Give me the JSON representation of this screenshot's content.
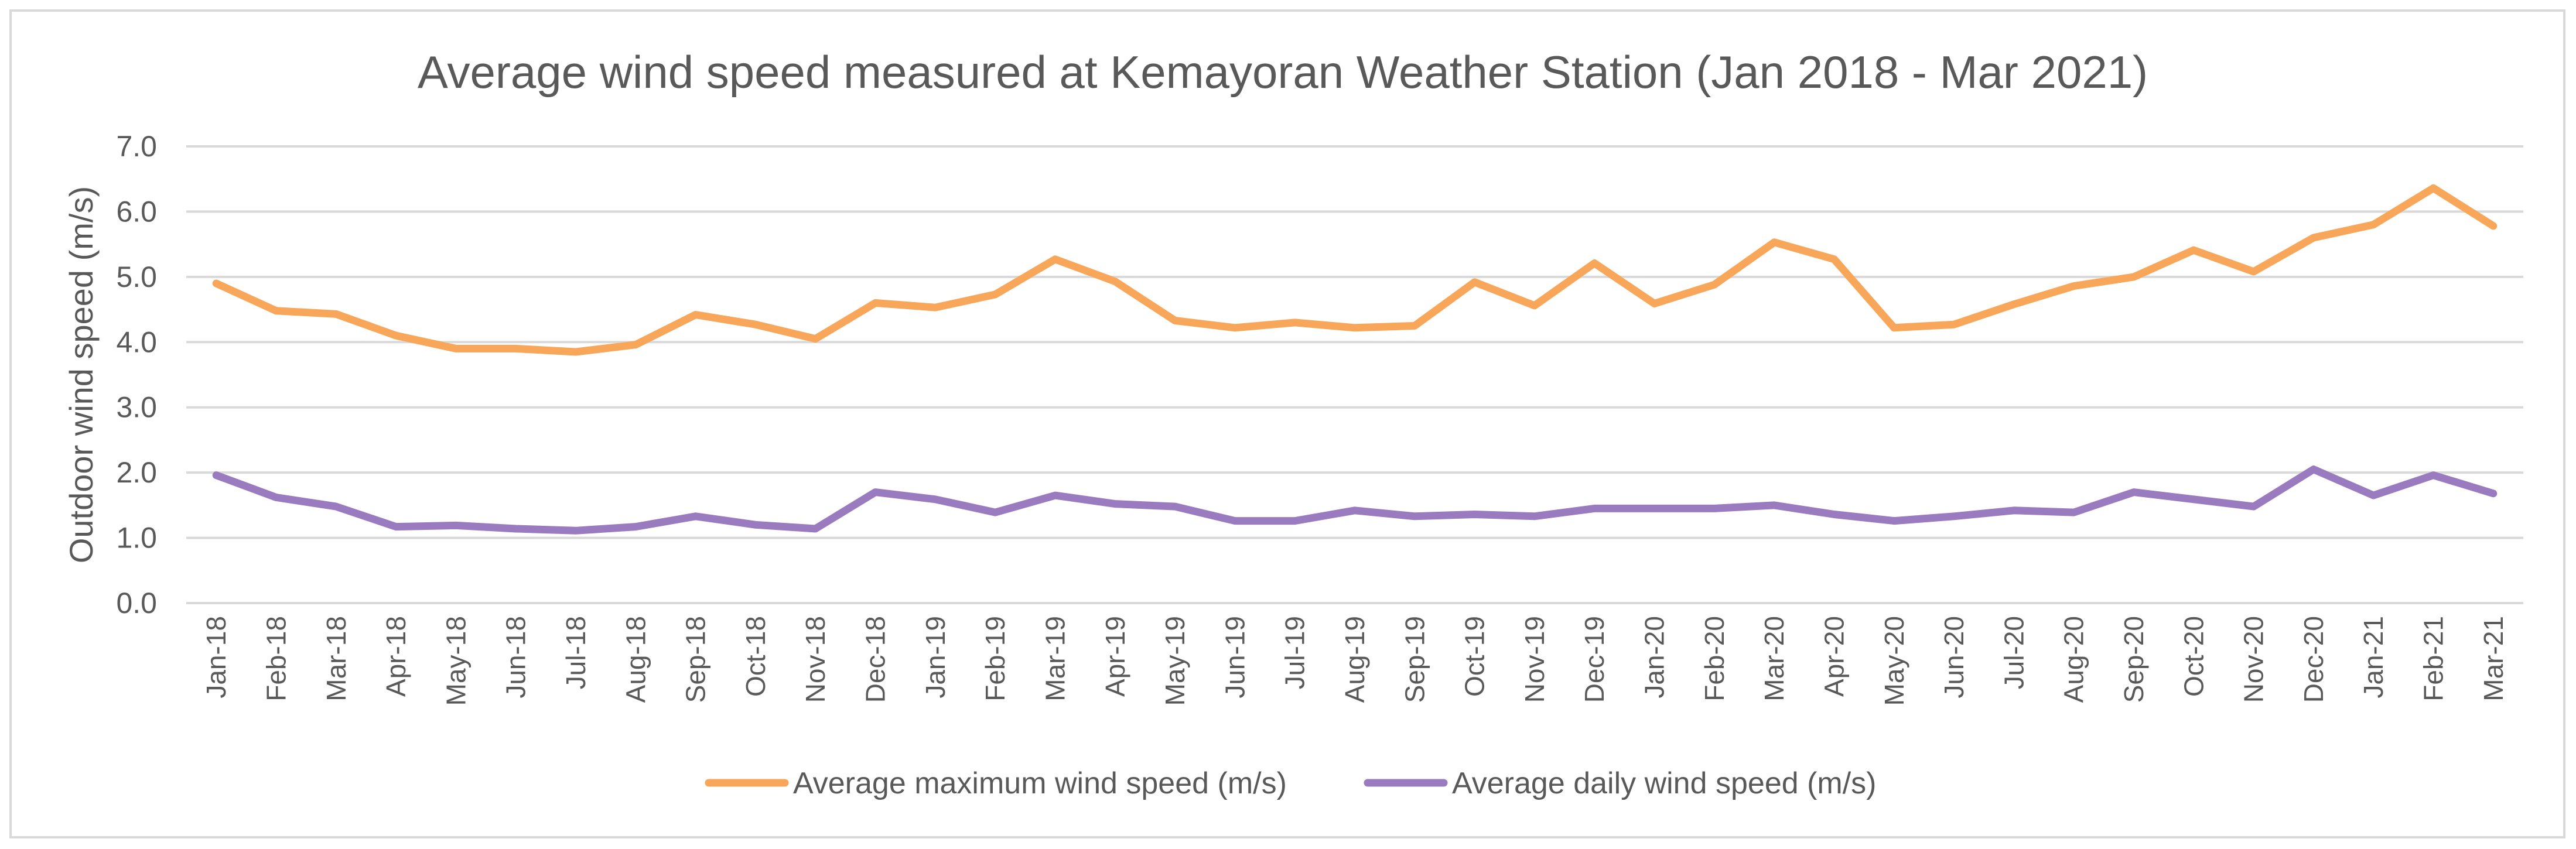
{
  "chart_data": {
    "type": "line",
    "title": "Average wind speed measured at Kemayoran Weather Station (Jan 2018 - Mar 2021)",
    "xlabel": "",
    "ylabel": "Outdoor wind speed (m/s)",
    "ylim": [
      0,
      7
    ],
    "ytick_values": [
      0,
      1,
      2,
      3,
      4,
      5,
      6,
      7
    ],
    "ytick_labels": [
      "0.0",
      "1.0",
      "2.0",
      "3.0",
      "4.0",
      "5.0",
      "6.0",
      "7.0"
    ],
    "grid": true,
    "legend_position": "bottom",
    "categories": [
      "Jan-18",
      "Feb-18",
      "Mar-18",
      "Apr-18",
      "May-18",
      "Jun-18",
      "Jul-18",
      "Aug-18",
      "Sep-18",
      "Oct-18",
      "Nov-18",
      "Dec-18",
      "Jan-19",
      "Feb-19",
      "Mar-19",
      "Apr-19",
      "May-19",
      "Jun-19",
      "Jul-19",
      "Aug-19",
      "Sep-19",
      "Oct-19",
      "Nov-19",
      "Dec-19",
      "Jan-20",
      "Feb-20",
      "Mar-20",
      "Apr-20",
      "May-20",
      "Jun-20",
      "Jul-20",
      "Aug-20",
      "Sep-20",
      "Oct-20",
      "Nov-20",
      "Dec-20",
      "Jan-21",
      "Feb-21",
      "Mar-21"
    ],
    "series": [
      {
        "name": "Average maximum wind speed (m/s)",
        "color": "#f8a75a",
        "values": [
          4.9,
          4.48,
          4.43,
          4.1,
          3.9,
          3.9,
          3.85,
          3.96,
          4.42,
          4.27,
          4.05,
          4.6,
          4.53,
          4.73,
          5.27,
          4.93,
          4.33,
          4.22,
          4.3,
          4.22,
          4.25,
          4.92,
          4.56,
          5.21,
          4.59,
          4.88,
          5.53,
          5.27,
          4.22,
          4.27,
          4.58,
          4.86,
          5.0,
          5.41,
          5.08,
          5.6,
          5.8,
          6.36,
          5.78
        ]
      },
      {
        "name": "Average daily wind speed (m/s)",
        "color": "#9b7bbf",
        "values": [
          1.96,
          1.62,
          1.48,
          1.17,
          1.19,
          1.14,
          1.11,
          1.17,
          1.33,
          1.2,
          1.14,
          1.7,
          1.59,
          1.39,
          1.65,
          1.52,
          1.48,
          1.26,
          1.26,
          1.42,
          1.33,
          1.36,
          1.33,
          1.45,
          1.45,
          1.45,
          1.5,
          1.36,
          1.26,
          1.33,
          1.42,
          1.39,
          1.7,
          1.59,
          1.48,
          2.05,
          1.65,
          1.96,
          1.68
        ]
      }
    ]
  }
}
